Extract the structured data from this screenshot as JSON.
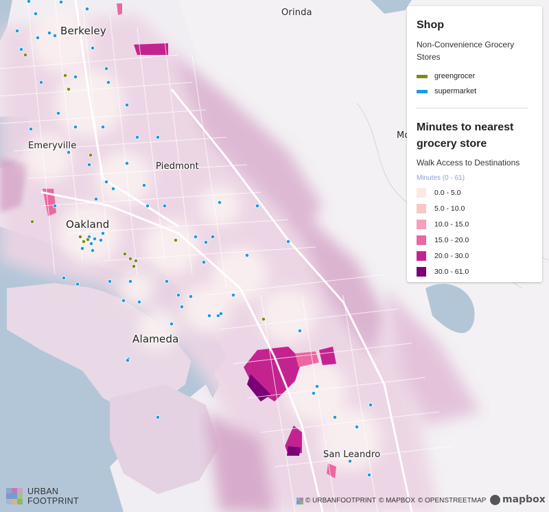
{
  "places": {
    "orinda": "Orinda",
    "berkeley": "Berkeley",
    "emeryville": "Emeryville",
    "piedmont": "Piedmont",
    "oakland": "Oakland",
    "alameda": "Alameda",
    "san_leandro": "San Leandro",
    "moraga_partial": "Mo"
  },
  "legend": {
    "shop_title": "Shop",
    "shop_subtitle": "Non-Convenience Grocery Stores",
    "shop_items": [
      {
        "label": "greengrocer",
        "color": "#7f8b15"
      },
      {
        "label": "supermarket",
        "color": "#1b9be0"
      }
    ],
    "minutes_title": "Minutes to nearest grocery store",
    "minutes_subtitle": "Walk Access to Destinations",
    "minutes_range": "Minutes (0 - 61)",
    "minutes_classes": [
      {
        "label": "0.0 - 5.0",
        "color": "#fbe9e4"
      },
      {
        "label": "5.0 - 10.0",
        "color": "#f8c7c8"
      },
      {
        "label": "10.0 - 15.0",
        "color": "#f59fba"
      },
      {
        "label": "15.0 - 20.0",
        "color": "#eb67a2"
      },
      {
        "label": "20.0 - 30.0",
        "color": "#c4238f"
      },
      {
        "label": "30.0 - 61.0",
        "color": "#7a0077"
      }
    ]
  },
  "logo": {
    "line1": "URBAN",
    "line2": "FOOTPRINT"
  },
  "attribution": {
    "urbanfootprint": "© URBANFOOTPRINT",
    "mapbox": "© MAPBOX",
    "osm": "© OPENSTREETMAP"
  },
  "mapbox_logo": "mapbox",
  "colors": {
    "water": "#b3c6d8",
    "land_light": "#f6eff3",
    "access_tint": "#e8c8dc",
    "supermarket": "#1b9be0",
    "greengrocer": "#7f8b15"
  }
}
